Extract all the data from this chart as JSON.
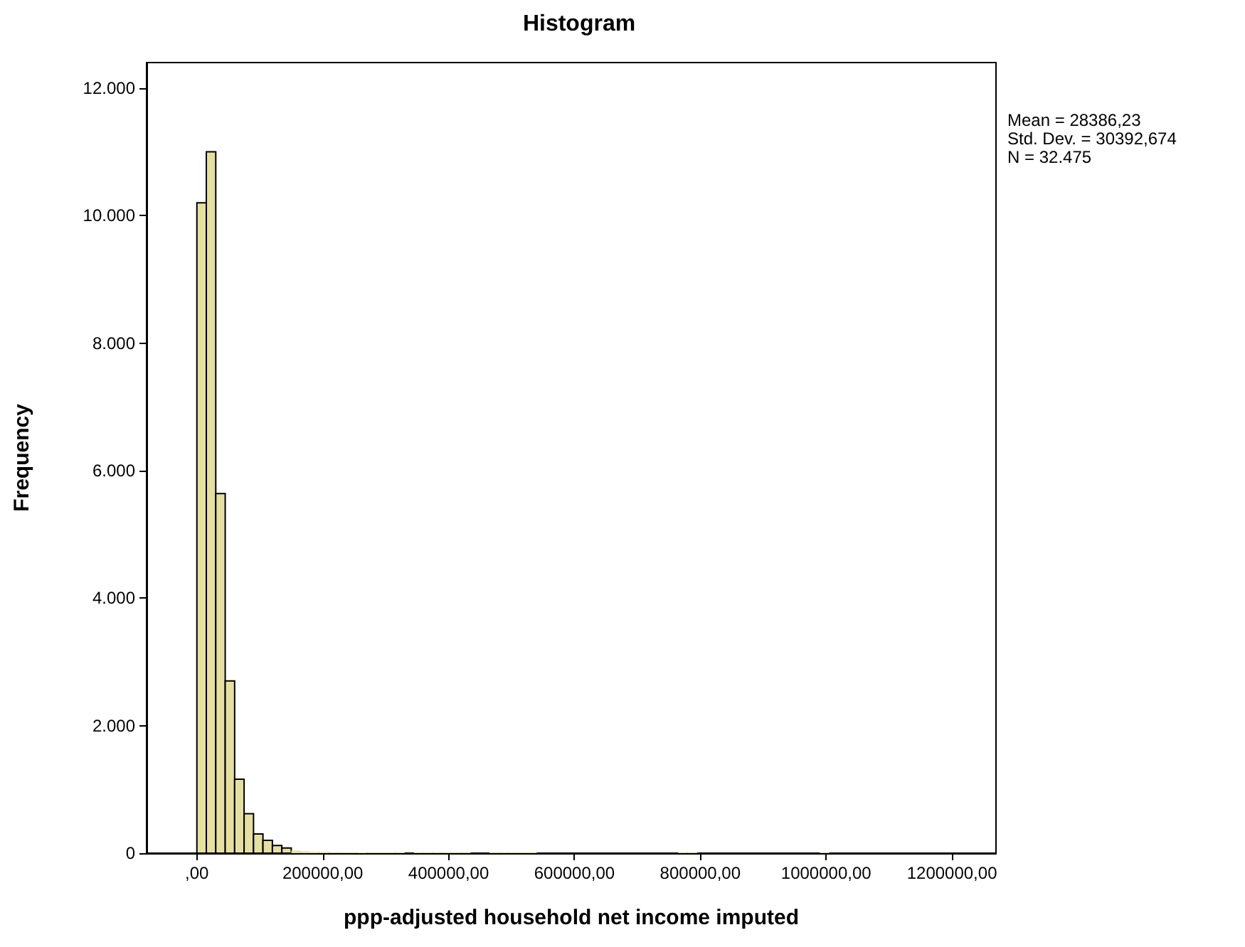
{
  "chart_data": {
    "type": "histogram",
    "title": "Histogram",
    "xlabel": "ppp-adjusted household net income imputed",
    "ylabel": "Frequency",
    "annotations": [
      "Mean = 28386,23",
      "Std. Dev. = 30392,674",
      "N = 32.475"
    ],
    "bins": [
      0,
      15000,
      30000,
      45000,
      60000,
      75000,
      90000,
      105000,
      120000,
      135000,
      150000,
      165000,
      180000,
      195000,
      210000,
      225000,
      240000,
      255000,
      270000,
      285000,
      300000,
      315000,
      330000,
      345000,
      360000,
      375000,
      390000,
      405000,
      420000,
      435000,
      450000,
      465000,
      480000,
      495000,
      510000,
      525000,
      540000,
      555000,
      570000,
      585000,
      600000,
      615000,
      630000,
      645000,
      660000,
      675000,
      690000,
      705000,
      720000,
      735000,
      750000,
      765000,
      780000,
      795000,
      810000,
      825000,
      840000,
      855000,
      870000,
      885000,
      900000,
      915000,
      930000,
      945000,
      960000,
      975000,
      990000,
      1005000,
      1020000,
      1035000,
      1050000,
      1065000,
      1080000,
      1095000,
      1110000,
      1125000,
      1140000,
      1155000,
      1170000,
      1185000,
      1200000
    ],
    "values": [
      10200,
      11000,
      5640,
      2700,
      1160,
      620,
      300,
      200,
      120,
      80,
      40,
      30,
      20,
      20,
      10,
      10,
      10,
      10,
      10,
      10,
      10,
      10,
      0,
      10,
      10,
      10,
      10,
      10,
      10,
      0,
      0,
      10,
      10,
      10,
      10,
      10,
      0,
      0,
      0,
      0,
      0,
      0,
      0,
      0,
      0,
      0,
      0,
      0,
      0,
      0,
      0,
      10,
      10,
      0,
      0,
      0,
      0,
      0,
      0,
      0,
      0,
      0,
      0,
      0,
      0,
      0,
      10,
      0,
      0,
      0,
      0,
      0,
      0,
      0,
      0,
      0,
      0,
      0,
      0,
      0
    ],
    "color": "#e6dfa2",
    "xlim": [
      -80000,
      1270000
    ],
    "xticks": [
      {
        "value": 0,
        "label": ",00"
      },
      {
        "value": 200000,
        "label": "200000,00"
      },
      {
        "value": 400000,
        "label": "400000,00"
      },
      {
        "value": 600000,
        "label": "600000,00"
      },
      {
        "value": 800000,
        "label": "800000,00"
      },
      {
        "value": 1000000,
        "label": "1000000,00"
      },
      {
        "value": 1200000,
        "label": "1200000,00"
      }
    ],
    "ylim": [
      0,
      12400
    ],
    "yticks": [
      {
        "value": 0,
        "label": "0"
      },
      {
        "value": 2000,
        "label": "2.000"
      },
      {
        "value": 4000,
        "label": "4.000"
      },
      {
        "value": 6000,
        "label": "6.000"
      },
      {
        "value": 8000,
        "label": "8.000"
      },
      {
        "value": 10000,
        "label": "10.000"
      },
      {
        "value": 12000,
        "label": "12.000"
      }
    ],
    "grid": false
  }
}
